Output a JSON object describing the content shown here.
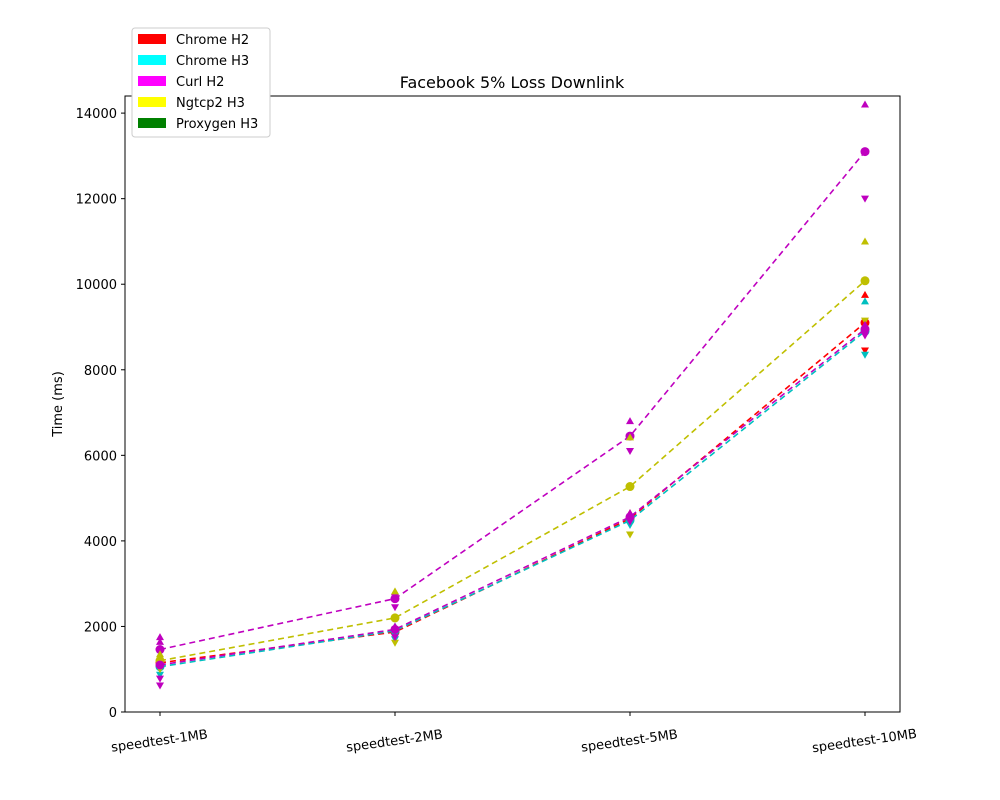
{
  "chart_data": {
    "type": "line",
    "title": "Facebook 5% Loss Downlink",
    "xlabel": "",
    "ylabel": "Time (ms)",
    "categories": [
      "speedtest-1MB",
      "speedtest-2MB",
      "speedtest-5MB",
      "speedtest-10MB"
    ],
    "ylim": [
      0,
      14400
    ],
    "yticks": [
      0,
      2000,
      4000,
      6000,
      8000,
      10000,
      12000,
      14000
    ],
    "legend_position": "top-left",
    "grid": false,
    "legend": [
      {
        "name": "Chrome H2",
        "color": "#ff0000"
      },
      {
        "name": "Chrome H3",
        "color": "#00ffff"
      },
      {
        "name": "Curl H2",
        "color": "#ff00ff"
      },
      {
        "name": "Ngtcp2 H3",
        "color": "#ffff00"
      },
      {
        "name": "Proxygen H3",
        "color": "#008000"
      }
    ],
    "series": [
      {
        "name": "Chrome H2",
        "color": "#ff0000",
        "values": [
          1150,
          1870,
          4520,
          9100
        ],
        "max": [
          1200,
          1950,
          4650,
          9750
        ],
        "min": [
          1080,
          1800,
          4400,
          8450
        ]
      },
      {
        "name": "Chrome H3",
        "color": "#00bfbf",
        "values": [
          1060,
          1900,
          4480,
          8900
        ],
        "max": [
          1150,
          2000,
          4600,
          9600
        ],
        "min": [
          870,
          1700,
          4370,
          8350
        ]
      },
      {
        "name": "Curl H2",
        "color": "#bf00bf",
        "values": [
          1460,
          2650,
          6450,
          13100
        ],
        "max": [
          1750,
          2800,
          6800,
          14200
        ],
        "min": [
          620,
          2450,
          6100,
          12000
        ]
      },
      {
        "name": "Ngtcp2 H3",
        "color": "#bfbf00",
        "values": [
          1200,
          2200,
          5270,
          10080
        ],
        "max": [
          1350,
          2820,
          6420,
          11000
        ],
        "min": [
          1000,
          1620,
          4150,
          9150
        ]
      },
      {
        "name": "Proxygen H3",
        "color": "#bf00bf",
        "values": [
          1100,
          1930,
          4560,
          8950
        ],
        "max": [
          1640,
          2000,
          4650,
          9050
        ],
        "min": [
          780,
          1750,
          4450,
          8800
        ]
      }
    ]
  }
}
